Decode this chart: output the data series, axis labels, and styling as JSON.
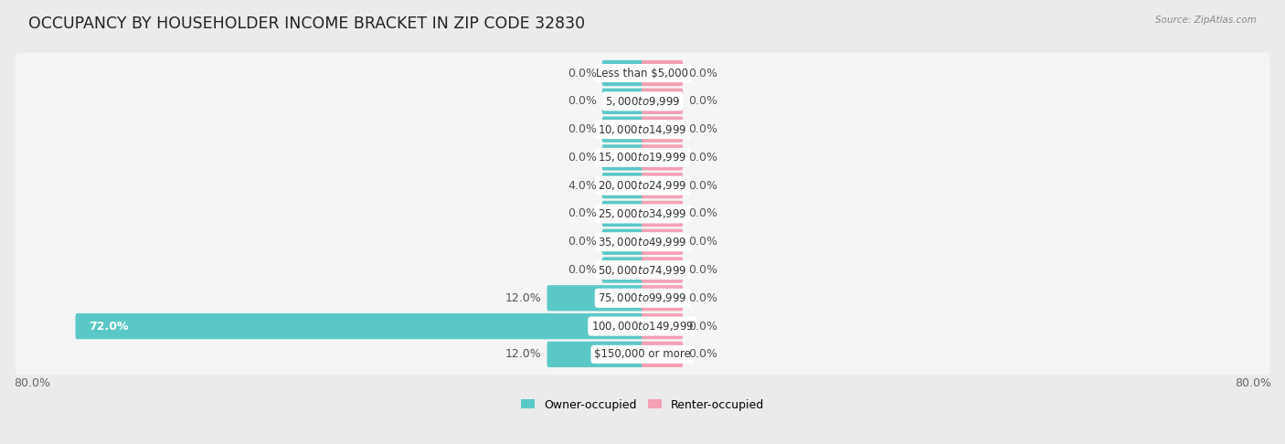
{
  "title": "OCCUPANCY BY HOUSEHOLDER INCOME BRACKET IN ZIP CODE 32830",
  "source": "Source: ZipAtlas.com",
  "categories": [
    "Less than $5,000",
    "$5,000 to $9,999",
    "$10,000 to $14,999",
    "$15,000 to $19,999",
    "$20,000 to $24,999",
    "$25,000 to $34,999",
    "$35,000 to $49,999",
    "$50,000 to $74,999",
    "$75,000 to $99,999",
    "$100,000 to $149,999",
    "$150,000 or more"
  ],
  "owner_occupied": [
    0.0,
    0.0,
    0.0,
    0.0,
    4.0,
    0.0,
    0.0,
    0.0,
    12.0,
    72.0,
    12.0
  ],
  "renter_occupied": [
    0.0,
    0.0,
    0.0,
    0.0,
    0.0,
    0.0,
    0.0,
    0.0,
    0.0,
    0.0,
    0.0
  ],
  "owner_color": "#5bc8c8",
  "renter_color": "#f4a0b5",
  "owner_color_large": "#2aacac",
  "xlim": 80.0,
  "min_bar_size": 5.0,
  "bar_height": 0.62,
  "background_color": "#ebebeb",
  "bar_background_color": "#f8f8f8",
  "row_bg_color": "#f0f0f0",
  "title_fontsize": 12.5,
  "label_fontsize": 9.0,
  "category_fontsize": 8.5,
  "axis_label_fontsize": 9.0,
  "legend_fontsize": 9.0
}
